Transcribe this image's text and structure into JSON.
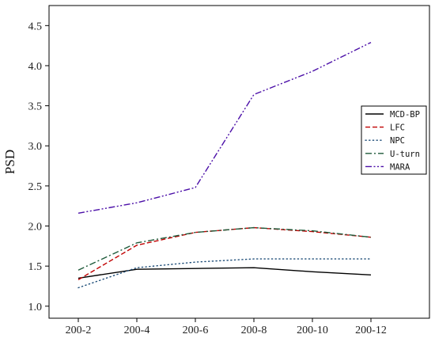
{
  "chart_data": {
    "type": "line",
    "title": "",
    "xlabel": "",
    "ylabel": "PSD",
    "categories": [
      "200-2",
      "200-4",
      "200-6",
      "200-8",
      "200-10",
      "200-12"
    ],
    "ylim": [
      0.85,
      4.75
    ],
    "yticks": [
      "1.0",
      "1.5",
      "2.0",
      "2.5",
      "3.0",
      "3.5",
      "4.0",
      "4.5"
    ],
    "grid": false,
    "legend": "right",
    "series": [
      {
        "name": "MCD-BP",
        "values": [
          1.35,
          1.46,
          1.47,
          1.48,
          1.43,
          1.39
        ],
        "color": "#000000",
        "dash": "solid"
      },
      {
        "name": "LFC",
        "values": [
          1.33,
          1.76,
          1.92,
          1.98,
          1.93,
          1.86
        ],
        "color": "#c00000",
        "dash": "dashed"
      },
      {
        "name": "NPC",
        "values": [
          1.23,
          1.48,
          1.55,
          1.59,
          1.59,
          1.59
        ],
        "color": "#1f4e79",
        "dash": "dotted"
      },
      {
        "name": "U-turn",
        "values": [
          1.45,
          1.79,
          1.92,
          1.98,
          1.94,
          1.86
        ],
        "color": "#1e5a3a",
        "dash": "dashdot"
      },
      {
        "name": "MARA",
        "values": [
          2.16,
          2.29,
          2.48,
          3.64,
          3.93,
          4.29
        ],
        "color": "#4b0fa8",
        "dash": "dashdotdot"
      }
    ]
  }
}
